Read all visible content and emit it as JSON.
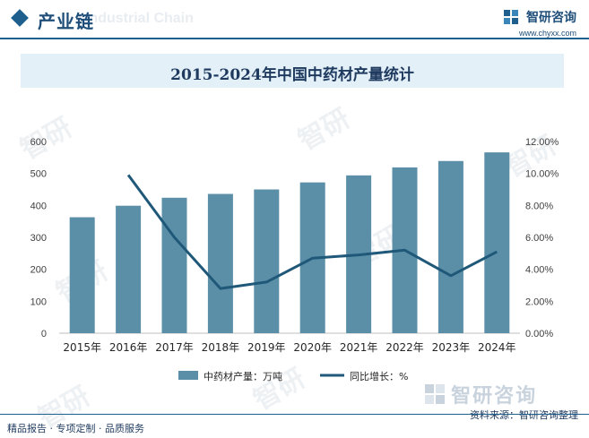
{
  "header": {
    "section_title": "产业链",
    "section_watermark": "Industrial Chain",
    "brand_name": "智研咨询",
    "brand_url": "www.chyxx.com"
  },
  "chart_title": "2015-2024年中国中药材产量统计",
  "chart_data": {
    "type": "bar",
    "title": "2015-2024年中国中药材产量统计",
    "categories": [
      "2015年",
      "2016年",
      "2017年",
      "2018年",
      "2019年",
      "2020年",
      "2021年",
      "2022年",
      "2023年",
      "2024年"
    ],
    "series": [
      {
        "name": "中药材产量：万吨",
        "type": "bar",
        "axis": "left",
        "values": [
          363,
          399,
          424,
          436,
          450,
          472,
          494,
          519,
          539,
          566
        ]
      },
      {
        "name": "同比增长：%",
        "type": "line",
        "axis": "right",
        "values": [
          null,
          9.9,
          6.0,
          2.8,
          3.2,
          4.7,
          4.9,
          5.2,
          3.6,
          5.1
        ]
      }
    ],
    "y_left": {
      "min": 0,
      "max": 600,
      "ticks": [
        "0",
        "100",
        "200",
        "300",
        "400",
        "500",
        "600"
      ]
    },
    "y_right": {
      "min": 0,
      "max": 12,
      "ticks": [
        "0.00%",
        "2.00%",
        "4.00%",
        "6.00%",
        "8.00%",
        "10.00%",
        "12.00%"
      ]
    },
    "grid": false,
    "legend": "bottom",
    "colors": {
      "bar": "#5b8fa8",
      "line": "#1f5878"
    }
  },
  "watermark_text": "智研",
  "bottom_logo_text": "智研咨询",
  "source": "资料来源：智研咨询整理",
  "footer": "精品报告 · 专项定制 · 品质服务"
}
